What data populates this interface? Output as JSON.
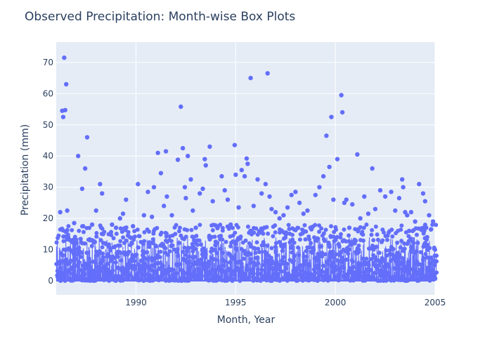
{
  "chart_data": {
    "type": "scatter",
    "title": "Observed Precipitation: Month-wise Box Plots",
    "xlabel": "Month, Year",
    "ylabel": "Precipitation (mm)",
    "xlim": [
      1986.0,
      2005.0
    ],
    "ylim": [
      -4.5,
      76.5
    ],
    "x_ticks": [
      1990,
      1995,
      2000,
      2005
    ],
    "y_ticks": [
      0,
      10,
      20,
      30,
      40,
      50,
      60,
      70
    ],
    "grid": true,
    "legend": "none",
    "series_color": "#636efa",
    "background_color": "#e5ecf6",
    "series": [
      {
        "x": [
          1986.2,
          1986.3,
          1986.35,
          1986.4,
          1986.45,
          1986.5,
          1986.55,
          1986.55,
          1986.6,
          1986.7,
          1986.8,
          1986.9,
          1987.0,
          1987.1,
          1987.3,
          1987.35,
          1987.45,
          1987.55,
          1987.7,
          1987.8,
          1988.0,
          1988.2,
          1988.3,
          1988.35,
          1988.45,
          1988.6,
          1988.8,
          1989.0,
          1989.2,
          1989.35,
          1989.5,
          1989.6,
          1989.85,
          1990.1,
          1990.4,
          1990.6,
          1990.8,
          1990.9,
          1991.1,
          1991.25,
          1991.4,
          1991.5,
          1991.55,
          1991.8,
          1992.1,
          1992.25,
          1992.35,
          1992.45,
          1992.5,
          1992.6,
          1992.75,
          1992.85,
          1993.0,
          1993.2,
          1993.35,
          1993.45,
          1993.5,
          1993.7,
          1993.85,
          1994.0,
          1994.3,
          1994.45,
          1994.6,
          1994.75,
          1994.95,
          1995.0,
          1995.15,
          1995.3,
          1995.45,
          1995.55,
          1995.6,
          1995.75,
          1995.9,
          1996.1,
          1996.3,
          1996.5,
          1996.6,
          1996.7,
          1996.8,
          1997.0,
          1997.2,
          1997.4,
          1997.6,
          1997.8,
          1998.0,
          1998.2,
          1998.4,
          1998.6,
          1998.8,
          1999.0,
          1999.2,
          1999.4,
          1999.55,
          1999.7,
          1999.8,
          1999.9,
          2000.1,
          2000.3,
          2000.35,
          2000.45,
          2000.55,
          2000.7,
          2000.85,
          2001.1,
          2001.25,
          2001.45,
          2001.65,
          2001.85,
          2002.0,
          2002.25,
          2002.5,
          2002.8,
          2003.0,
          2003.2,
          2003.35,
          2003.4,
          2003.5,
          2003.6,
          2003.7,
          2003.8,
          2004.0,
          2004.2,
          2004.4,
          2004.5,
          2004.55,
          2004.6,
          2004.7,
          2004.8,
          2004.9
        ],
        "y": [
          22.0,
          54.5,
          52.5,
          71.5,
          54.7,
          63.0,
          22.5,
          16.2,
          14.0,
          13.0,
          12.5,
          18.5,
          7.0,
          40.0,
          29.5,
          17.5,
          36.0,
          46.0,
          13.0,
          18.0,
          22.5,
          31.0,
          28.0,
          15.0,
          12.0,
          8.5,
          18.0,
          17.0,
          20.0,
          21.5,
          26.0,
          14.5,
          17.5,
          31.0,
          21.0,
          28.5,
          20.5,
          30.0,
          41.0,
          34.5,
          24.0,
          41.5,
          27.0,
          21.0,
          38.8,
          55.8,
          42.5,
          30.0,
          26.5,
          40.0,
          32.5,
          22.5,
          17.0,
          28.0,
          29.5,
          39.0,
          37.0,
          43.0,
          25.5,
          12.5,
          33.5,
          29.0,
          26.0,
          18.0,
          43.5,
          34.0,
          23.5,
          35.5,
          33.5,
          39.2,
          37.5,
          65.0,
          24.0,
          32.5,
          28.0,
          31.0,
          66.5,
          27.0,
          23.0,
          22.0,
          20.0,
          21.0,
          23.5,
          27.5,
          28.5,
          25.0,
          21.5,
          22.5,
          16.5,
          27.5,
          30.0,
          33.5,
          46.5,
          36.5,
          52.5,
          26.0,
          39.0,
          59.5,
          54.0,
          25.0,
          26.0,
          17.0,
          24.5,
          40.5,
          20.0,
          27.0,
          21.5,
          36.0,
          23.0,
          29.0,
          27.0,
          28.5,
          22.5,
          26.5,
          32.5,
          30.0,
          22.0,
          21.0,
          16.0,
          22.0,
          19.0,
          31.0,
          28.0,
          25.5,
          17.0,
          14.0,
          21.0,
          16.5,
          19.0
        ]
      }
    ]
  }
}
